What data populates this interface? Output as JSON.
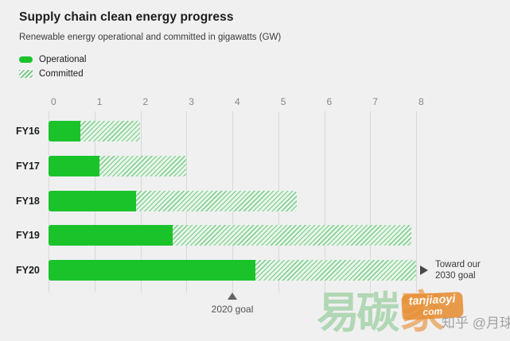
{
  "header": {
    "title": "Supply chain clean energy progress",
    "subtitle": "Renewable energy operational and committed in gigawatts (GW)"
  },
  "legend": {
    "operational_label": "Operational",
    "committed_label": "Committed"
  },
  "colors": {
    "background": "#f0f0f1",
    "operational_green": "#1bc32b",
    "committed_hatch_green": "#1eaa37",
    "grid": "#d8d8da",
    "text_dark": "#1d1d1f",
    "text_gray": "#86868b",
    "marker_gray": "#636366",
    "watermark_green": "#a7d3ab",
    "watermark_orange": "#e88f35"
  },
  "chart_data": {
    "type": "bar",
    "orientation": "horizontal",
    "title": "Supply chain clean energy progress",
    "subtitle": "Renewable energy operational and committed in gigawatts (GW)",
    "unit": "GW",
    "categories": [
      "FY16",
      "FY17",
      "FY18",
      "FY19",
      "FY20"
    ],
    "series": [
      {
        "name": "Operational",
        "values": [
          0.7,
          1.1,
          1.9,
          2.7,
          4.5
        ]
      },
      {
        "name": "Committed",
        "values": [
          1.3,
          1.9,
          3.5,
          5.2,
          3.5
        ]
      }
    ],
    "stacked_totals": [
      2.0,
      3.0,
      5.4,
      7.9,
      8.0
    ],
    "xlim": [
      0,
      8
    ],
    "x_ticks": [
      0,
      1,
      2,
      3,
      4,
      5,
      6,
      7,
      8
    ],
    "grid": "vertical-on",
    "axis_position": "top",
    "legend_position": "top-left"
  },
  "annotations": {
    "goal_2020": {
      "label": "2020 goal",
      "value": 4
    },
    "goal_2030": {
      "line1": "Toward our",
      "line2": "2030 goal"
    }
  },
  "watermark": {
    "cjk_green": "易碳",
    "cjk_orange": "家",
    "badge_line1": "tanjiaoyi",
    "badge_line2": "com",
    "credit": "知乎 @月球"
  }
}
